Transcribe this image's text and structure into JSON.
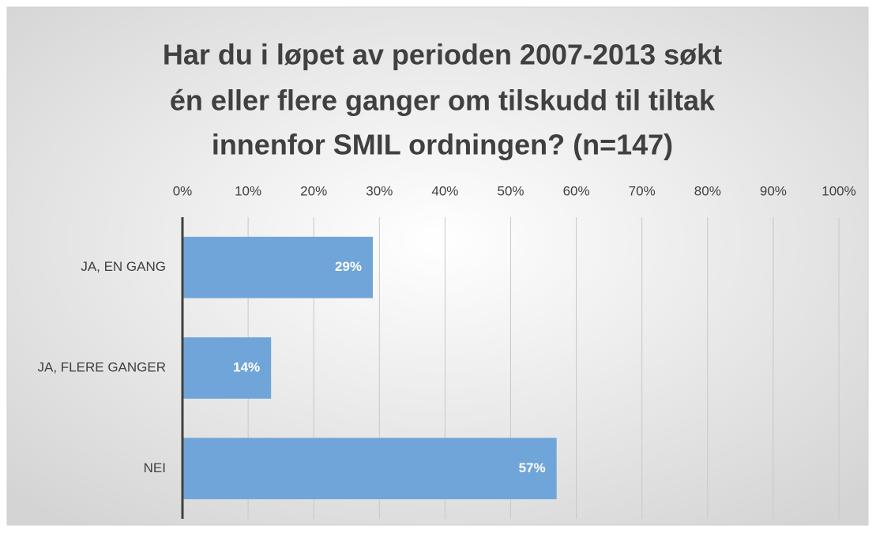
{
  "chart_data": {
    "type": "bar",
    "orientation": "horizontal",
    "title": [
      "Har du i løpet av perioden 2007-2013 søkt",
      "én eller flere ganger om tilskudd til tiltak",
      "innenfor SMIL ordningen? (n=147)"
    ],
    "categories": [
      "JA, EN GANG",
      "JA, FLERE GANGER",
      "NEI"
    ],
    "values": [
      29,
      13.5,
      57
    ],
    "value_labels": [
      "29%",
      "14%",
      "57%"
    ],
    "color": "#70a5d9",
    "xlim": [
      0,
      100
    ],
    "xticks": [
      {
        "value": 0,
        "label": "0%"
      },
      {
        "value": 10,
        "label": "10%"
      },
      {
        "value": 20,
        "label": "20%"
      },
      {
        "value": 30,
        "label": "30%"
      },
      {
        "value": 40,
        "label": "40%"
      },
      {
        "value": 50,
        "label": "50%"
      },
      {
        "value": 60,
        "label": "60%"
      },
      {
        "value": 70,
        "label": "70%"
      },
      {
        "value": 80,
        "label": "80%"
      },
      {
        "value": 90,
        "label": "90%"
      },
      {
        "value": 100,
        "label": "100%"
      }
    ],
    "grid": true
  }
}
